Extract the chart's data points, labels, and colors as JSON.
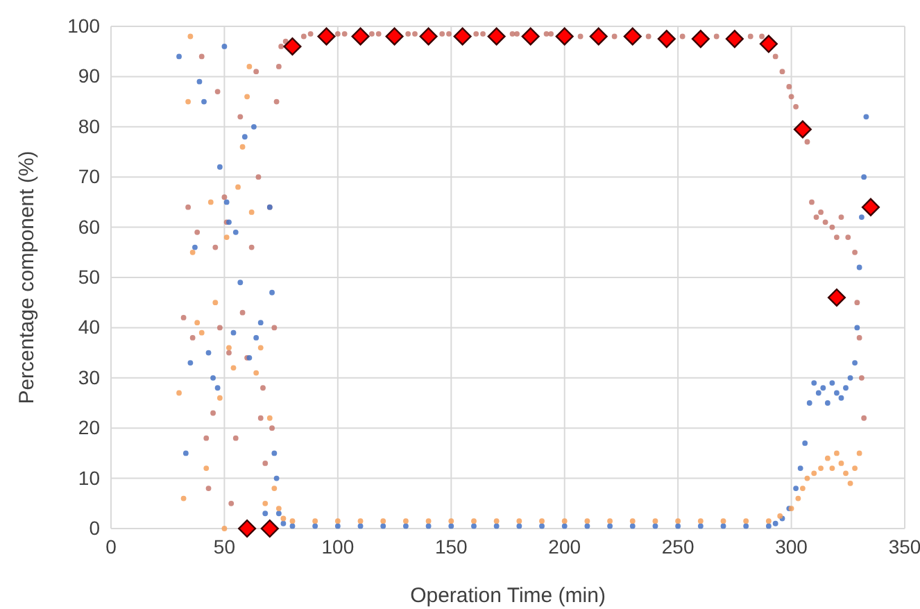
{
  "chart_data": {
    "type": "scatter",
    "xlabel": "Operation Time (min)",
    "ylabel": "Percentage component (%)",
    "xlim": [
      0,
      350
    ],
    "ylim": [
      0,
      100
    ],
    "xticks": [
      0,
      50,
      100,
      150,
      200,
      250,
      300,
      350
    ],
    "yticks": [
      0,
      10,
      20,
      30,
      40,
      50,
      60,
      70,
      80,
      90,
      100
    ],
    "grid": true,
    "marker": "circle",
    "series": [
      {
        "color": "#c5786e",
        "x": [
          32,
          34,
          36,
          38,
          40,
          42,
          43,
          45,
          46,
          47,
          48,
          50,
          51,
          52,
          53,
          55,
          57,
          58,
          60,
          62,
          64,
          65,
          66,
          67,
          68,
          70,
          71,
          72,
          73,
          74,
          75,
          77,
          85,
          88,
          100,
          103,
          115,
          118,
          131,
          134,
          146,
          149,
          161,
          164,
          177,
          179,
          192,
          194,
          207,
          222,
          237,
          252,
          267,
          282,
          287,
          293,
          296,
          299,
          302,
          300,
          307,
          309,
          311,
          313,
          315,
          318,
          320,
          322,
          325,
          328,
          329,
          330,
          331,
          332
        ],
        "values": [
          42,
          64,
          38,
          59,
          94,
          18,
          8,
          23,
          56,
          87,
          40,
          66,
          61,
          35,
          5,
          18,
          82,
          43,
          34,
          56,
          91,
          70,
          22,
          28,
          13,
          64,
          20,
          40,
          85,
          92,
          96,
          97,
          98,
          98.5,
          98.5,
          98.5,
          98.5,
          98.5,
          98.5,
          98.5,
          98.5,
          98.5,
          98.5,
          98.5,
          98.5,
          98.5,
          98.5,
          98.5,
          98,
          98,
          98,
          98,
          98,
          98,
          98,
          94,
          91,
          88,
          84,
          86,
          77,
          65,
          62,
          63,
          61,
          60,
          58,
          62,
          58,
          55,
          45,
          38,
          30,
          22
        ]
      },
      {
        "color": "#4472c4",
        "x": [
          30,
          33,
          35,
          37,
          39,
          41,
          43,
          45,
          47,
          48,
          50,
          51,
          52,
          54,
          55,
          57,
          59,
          61,
          63,
          64,
          66,
          68,
          70,
          71,
          72,
          73,
          74,
          76,
          80,
          90,
          100,
          110,
          120,
          130,
          140,
          150,
          160,
          170,
          180,
          190,
          200,
          210,
          220,
          230,
          240,
          250,
          260,
          270,
          280,
          290,
          293,
          296,
          299,
          302,
          304,
          306,
          308,
          310,
          312,
          314,
          316,
          318,
          320,
          322,
          324,
          326,
          328,
          329,
          330,
          331,
          332,
          333
        ],
        "values": [
          94,
          15,
          33,
          56,
          89,
          85,
          35,
          30,
          28,
          72,
          96,
          65,
          61,
          39,
          59,
          49,
          78,
          34,
          80,
          38,
          41,
          3,
          64,
          47,
          15,
          10,
          3,
          1,
          0.5,
          0.5,
          0.5,
          0.5,
          0.5,
          0.5,
          0.5,
          0.5,
          0.5,
          0.5,
          0.5,
          0.5,
          0.5,
          0.5,
          0.5,
          0.5,
          0.5,
          0.5,
          0.5,
          0.5,
          0.5,
          0.5,
          1,
          2,
          4,
          8,
          12,
          17,
          25,
          29,
          27,
          28,
          25,
          29,
          27,
          26,
          28,
          30,
          33,
          40,
          52,
          62,
          70,
          82
        ]
      },
      {
        "color": "#f4a05a",
        "x": [
          30,
          32,
          34,
          35,
          36,
          38,
          40,
          42,
          44,
          46,
          48,
          50,
          51,
          52,
          54,
          56,
          58,
          60,
          61,
          62,
          64,
          66,
          68,
          70,
          72,
          74,
          76,
          80,
          90,
          100,
          110,
          120,
          130,
          140,
          150,
          160,
          170,
          180,
          190,
          200,
          210,
          220,
          230,
          240,
          250,
          260,
          270,
          280,
          290,
          295,
          300,
          303,
          305,
          307,
          310,
          313,
          316,
          318,
          320,
          322,
          324,
          326,
          328,
          330
        ],
        "values": [
          27,
          6,
          85,
          98,
          55,
          41,
          39,
          12,
          65,
          45,
          26,
          0,
          58,
          36,
          32,
          68,
          76,
          86,
          92,
          63,
          31,
          36,
          5,
          22,
          8,
          4,
          2,
          1.5,
          1.5,
          1.5,
          1.5,
          1.5,
          1.5,
          1.5,
          1.5,
          1.5,
          1.5,
          1.5,
          1.5,
          1.5,
          1.5,
          1.5,
          1.5,
          1.5,
          1.5,
          1.5,
          1.5,
          1.5,
          1.5,
          2.5,
          4,
          6,
          8,
          10,
          11,
          12,
          14,
          12,
          15,
          13,
          11,
          9,
          12,
          15
        ]
      },
      {
        "color": "#ff0000",
        "marker": "diamond",
        "x": [
          60,
          70,
          80,
          95,
          110,
          125,
          140,
          155,
          170,
          185,
          200,
          215,
          230,
          245,
          260,
          275,
          290,
          305,
          320,
          335
        ],
        "values": [
          0,
          0,
          96,
          98,
          98,
          98,
          98,
          98,
          98,
          98,
          98,
          98,
          98,
          97.5,
          97.5,
          97.5,
          96.5,
          79.5,
          46,
          64
        ]
      }
    ]
  }
}
